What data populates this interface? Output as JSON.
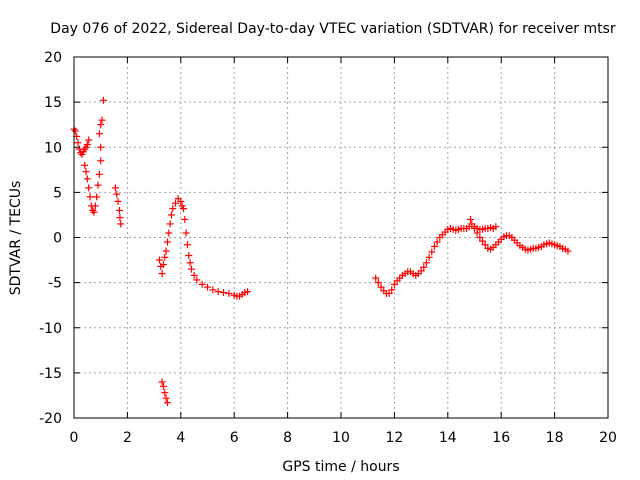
{
  "chart_data": {
    "type": "scatter",
    "title": "Day 076 of 2022, Sidereal Day-to-day VTEC variation (SDTVAR) for receiver mtsr",
    "xlabel": "GPS time / hours",
    "ylabel": "SDTVAR / TECUs",
    "xlim": [
      0,
      20
    ],
    "ylim": [
      -20,
      20
    ],
    "xticks": [
      0,
      2,
      4,
      6,
      8,
      10,
      12,
      14,
      16,
      18,
      20
    ],
    "yticks": [
      -20,
      -15,
      -10,
      -5,
      0,
      5,
      10,
      15,
      20
    ],
    "grid": true,
    "marker": "+",
    "series": [
      {
        "name": "SDTVAR",
        "color": "#ff0000",
        "segments": [
          [
            [
              0.0,
              12.0
            ],
            [
              0.05,
              11.8
            ],
            [
              0.1,
              11.2
            ],
            [
              0.15,
              10.5
            ],
            [
              0.2,
              9.8
            ],
            [
              0.25,
              9.4
            ],
            [
              0.3,
              9.2
            ],
            [
              0.35,
              9.5
            ],
            [
              0.4,
              9.8
            ],
            [
              0.45,
              10.0
            ],
            [
              0.5,
              10.3
            ],
            [
              0.55,
              10.8
            ]
          ],
          [
            [
              0.4,
              8.0
            ],
            [
              0.45,
              7.3
            ],
            [
              0.5,
              6.5
            ],
            [
              0.55,
              5.5
            ],
            [
              0.6,
              4.5
            ],
            [
              0.65,
              3.5
            ],
            [
              0.7,
              3.0
            ],
            [
              0.75,
              2.8
            ],
            [
              0.8,
              3.5
            ],
            [
              0.85,
              4.5
            ],
            [
              0.9,
              5.8
            ],
            [
              0.95,
              7.0
            ],
            [
              1.0,
              8.5
            ],
            [
              1.0,
              10.0
            ],
            [
              0.95,
              11.5
            ],
            [
              1.0,
              12.5
            ],
            [
              1.05,
              13.0
            ],
            [
              1.1,
              15.2
            ]
          ],
          [
            [
              1.55,
              5.5
            ],
            [
              1.6,
              4.8
            ],
            [
              1.65,
              4.0
            ],
            [
              1.7,
              3.0
            ],
            [
              1.72,
              2.2
            ],
            [
              1.75,
              1.5
            ]
          ],
          [
            [
              3.2,
              -2.5
            ],
            [
              3.25,
              -3.2
            ],
            [
              3.3,
              -4.0
            ],
            [
              3.35,
              -3.0
            ],
            [
              3.4,
              -2.2
            ],
            [
              3.45,
              -1.5
            ],
            [
              3.5,
              -0.5
            ],
            [
              3.55,
              0.5
            ],
            [
              3.6,
              1.5
            ],
            [
              3.65,
              2.5
            ],
            [
              3.7,
              3.2
            ],
            [
              3.8,
              3.8
            ],
            [
              3.9,
              4.3
            ],
            [
              4.0,
              4.0
            ],
            [
              4.05,
              3.5
            ],
            [
              4.1,
              3.2
            ],
            [
              4.15,
              2.0
            ],
            [
              4.2,
              0.5
            ],
            [
              4.25,
              -0.8
            ],
            [
              4.3,
              -2.0
            ],
            [
              4.35,
              -2.8
            ],
            [
              4.4,
              -3.5
            ],
            [
              4.5,
              -4.2
            ],
            [
              4.6,
              -4.7
            ],
            [
              4.8,
              -5.2
            ],
            [
              5.0,
              -5.5
            ],
            [
              5.2,
              -5.8
            ],
            [
              5.4,
              -6.0
            ],
            [
              5.6,
              -6.1
            ],
            [
              5.8,
              -6.2
            ],
            [
              6.0,
              -6.4
            ],
            [
              6.1,
              -6.5
            ],
            [
              6.2,
              -6.5
            ],
            [
              6.3,
              -6.3
            ],
            [
              6.4,
              -6.1
            ],
            [
              6.5,
              -6.0
            ]
          ],
          [
            [
              3.3,
              -16.0
            ],
            [
              3.35,
              -16.5
            ],
            [
              3.4,
              -17.2
            ],
            [
              3.45,
              -17.8
            ],
            [
              3.5,
              -18.3
            ]
          ],
          [
            [
              11.3,
              -4.5
            ],
            [
              11.4,
              -5.0
            ],
            [
              11.5,
              -5.5
            ],
            [
              11.6,
              -5.9
            ],
            [
              11.7,
              -6.2
            ],
            [
              11.8,
              -6.2
            ],
            [
              11.9,
              -5.8
            ],
            [
              12.0,
              -5.2
            ],
            [
              12.1,
              -4.8
            ],
            [
              12.2,
              -4.5
            ],
            [
              12.3,
              -4.2
            ],
            [
              12.4,
              -4.0
            ],
            [
              12.5,
              -3.8
            ],
            [
              12.6,
              -3.8
            ],
            [
              12.7,
              -4.0
            ],
            [
              12.8,
              -4.2
            ],
            [
              12.9,
              -4.0
            ],
            [
              13.0,
              -3.7
            ],
            [
              13.1,
              -3.3
            ],
            [
              13.2,
              -2.8
            ],
            [
              13.3,
              -2.2
            ],
            [
              13.4,
              -1.6
            ],
            [
              13.5,
              -1.0
            ],
            [
              13.6,
              -0.5
            ],
            [
              13.7,
              0.0
            ],
            [
              13.8,
              0.3
            ],
            [
              13.9,
              0.6
            ],
            [
              14.0,
              0.9
            ],
            [
              14.1,
              1.0
            ],
            [
              14.2,
              0.9
            ],
            [
              14.3,
              0.8
            ],
            [
              14.4,
              0.9
            ],
            [
              14.5,
              1.0
            ],
            [
              14.6,
              1.0
            ],
            [
              14.7,
              1.0
            ],
            [
              14.8,
              1.2
            ],
            [
              14.85,
              2.0
            ],
            [
              14.9,
              1.5
            ],
            [
              15.0,
              1.0
            ],
            [
              15.1,
              0.5
            ],
            [
              15.2,
              0.0
            ],
            [
              15.3,
              -0.4
            ],
            [
              15.4,
              -0.8
            ],
            [
              15.5,
              -1.2
            ],
            [
              15.6,
              -1.3
            ],
            [
              15.7,
              -1.1
            ],
            [
              15.8,
              -0.8
            ],
            [
              15.9,
              -0.5
            ],
            [
              16.0,
              -0.2
            ],
            [
              16.1,
              0.1
            ],
            [
              16.2,
              0.2
            ],
            [
              16.3,
              0.2
            ],
            [
              16.4,
              0.0
            ],
            [
              16.5,
              -0.3
            ],
            [
              16.6,
              -0.6
            ],
            [
              16.7,
              -0.9
            ],
            [
              16.8,
              -1.1
            ],
            [
              16.9,
              -1.3
            ],
            [
              17.0,
              -1.4
            ],
            [
              17.1,
              -1.3
            ],
            [
              17.2,
              -1.2
            ],
            [
              17.3,
              -1.2
            ],
            [
              17.4,
              -1.1
            ],
            [
              17.5,
              -1.0
            ],
            [
              17.6,
              -0.8
            ],
            [
              17.7,
              -0.7
            ],
            [
              17.8,
              -0.6
            ],
            [
              17.9,
              -0.7
            ],
            [
              18.0,
              -0.8
            ],
            [
              18.1,
              -0.9
            ],
            [
              18.2,
              -1.0
            ],
            [
              18.3,
              -1.2
            ],
            [
              18.4,
              -1.3
            ],
            [
              18.5,
              -1.5
            ]
          ],
          [
            [
              15.0,
              1.2
            ],
            [
              15.1,
              1.0
            ],
            [
              15.2,
              0.9
            ],
            [
              15.3,
              0.9
            ],
            [
              15.4,
              1.0
            ],
            [
              15.5,
              1.0
            ],
            [
              15.6,
              1.1
            ],
            [
              15.7,
              1.0
            ],
            [
              15.8,
              1.2
            ]
          ]
        ]
      }
    ]
  }
}
